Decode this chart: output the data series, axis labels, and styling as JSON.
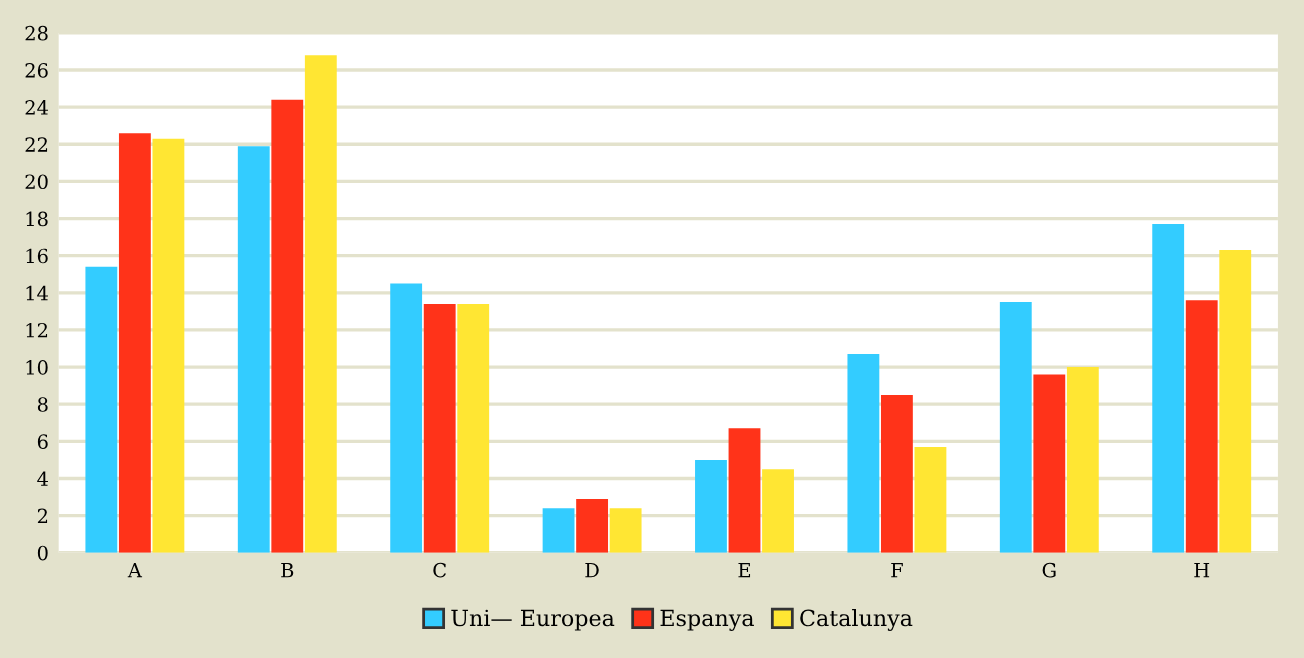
{
  "chart_data": {
    "type": "bar",
    "categories": [
      "A",
      "B",
      "C",
      "D",
      "E",
      "F",
      "G",
      "H"
    ],
    "series": [
      {
        "name": "Uni— Europea",
        "color": "#33ccff",
        "values": [
          15.4,
          21.9,
          14.5,
          2.4,
          5.0,
          10.7,
          13.5,
          17.7
        ]
      },
      {
        "name": "Espanya",
        "color": "#ff3319",
        "values": [
          22.6,
          24.4,
          13.4,
          2.9,
          6.7,
          8.5,
          9.6,
          13.6
        ]
      },
      {
        "name": "Catalunya",
        "color": "#ffe633",
        "values": [
          22.3,
          26.8,
          13.4,
          2.4,
          4.5,
          5.7,
          10.0,
          16.3
        ]
      }
    ],
    "ylim": [
      0,
      28
    ],
    "yticks": [
      0,
      2,
      4,
      6,
      8,
      10,
      12,
      14,
      16,
      18,
      20,
      22,
      24,
      26,
      28
    ],
    "grid": "y",
    "legend": "bottom"
  }
}
